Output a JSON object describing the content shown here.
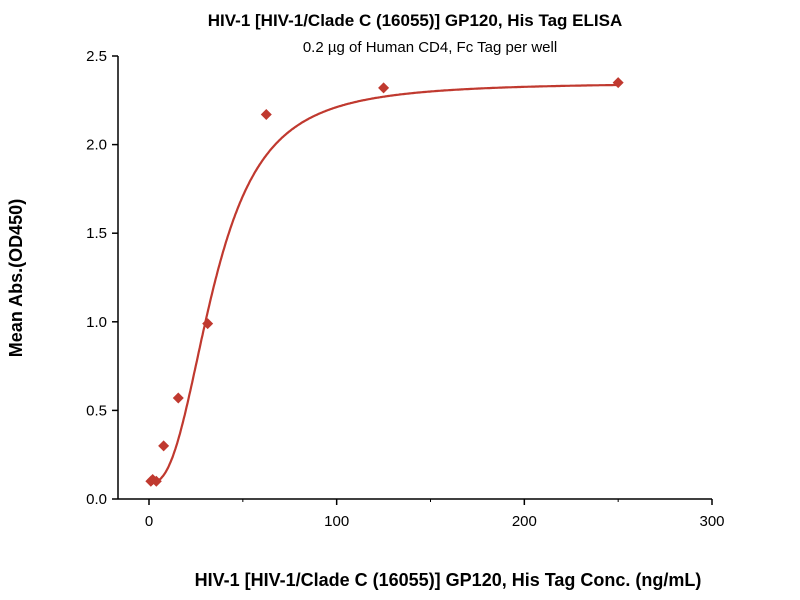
{
  "chart_data": {
    "type": "scatter",
    "title": "HIV-1 [HIV-1/Clade C (16055)] GP120, His Tag ELISA",
    "subtitle": "0.2 µg of Human CD4, Fc Tag per well",
    "xlabel": "HIV-1 [HIV-1/Clade C (16055)] GP120, His Tag Conc. (ng/mL)",
    "ylabel": "Mean Abs.(OD450)",
    "xlim": [
      -16,
      300
    ],
    "ylim": [
      0,
      2.5
    ],
    "xticks": [
      "0",
      "100",
      "200",
      "300"
    ],
    "yticks": [
      "0.0",
      "0.5",
      "1.0",
      "1.5",
      "2.0",
      "2.5"
    ],
    "xtick_values": [
      0,
      100,
      200,
      300
    ],
    "ytick_values": [
      0,
      0.5,
      1.0,
      1.5,
      2.0,
      2.5
    ],
    "x": [
      0.98,
      1.95,
      3.9,
      7.8,
      15.6,
      31.25,
      62.5,
      125,
      250
    ],
    "y": [
      0.1,
      0.11,
      0.1,
      0.3,
      0.57,
      0.99,
      2.17,
      2.32,
      2.35
    ],
    "fit": {
      "model": "4PL",
      "bottom": 0.09,
      "top": 2.35,
      "ec50": 35,
      "hill": 2.6
    },
    "color": "#c0392f",
    "grid": false
  }
}
